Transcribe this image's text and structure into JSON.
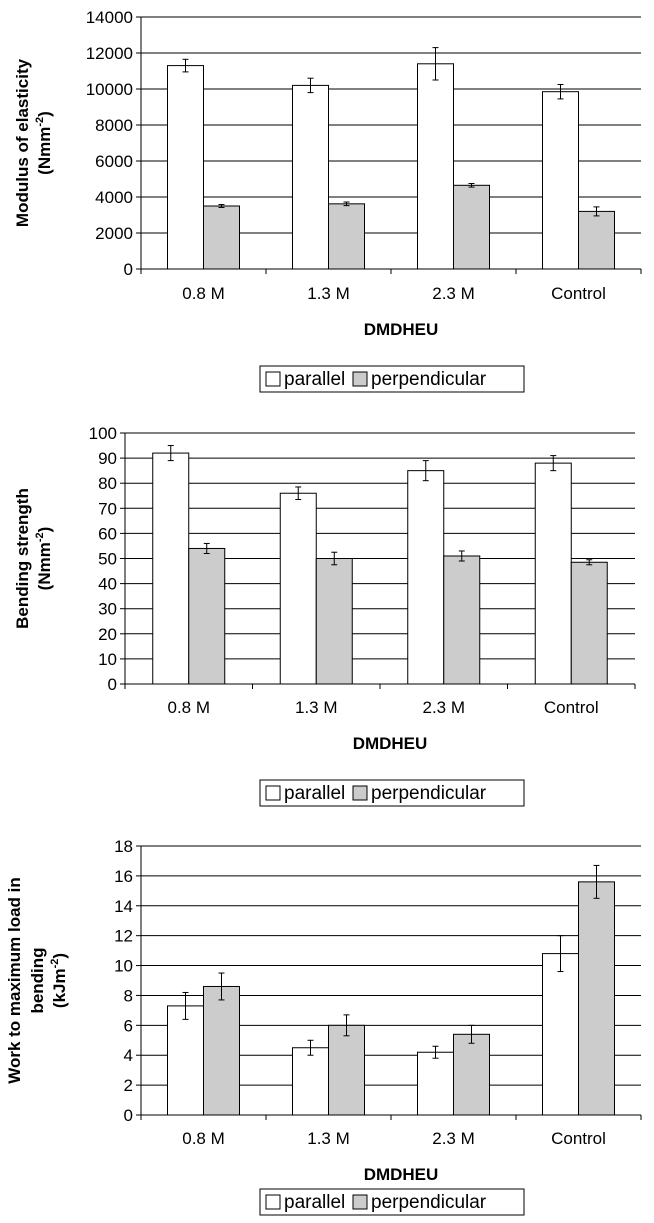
{
  "colors": {
    "parallel": "#ffffff",
    "perpendicular": "#cccccc",
    "axis": "#000000",
    "grid": "#000000"
  },
  "chart_data": [
    {
      "type": "bar",
      "xlabel": "DMDHEU",
      "ylabel_lines": [
        "Modulus of elasticity",
        "(Nmm-2)"
      ],
      "ylabel_unit": {
        "open": "(Nmm",
        "sup": "-2",
        "close": ")"
      },
      "categories": [
        "0.8 M",
        "1.3 M",
        "2.3 M",
        "Control"
      ],
      "ylim": [
        0,
        14000
      ],
      "yticks": [
        0,
        2000,
        4000,
        6000,
        8000,
        10000,
        12000,
        14000
      ],
      "grid": true,
      "legend_position": "bottom",
      "series": [
        {
          "name": "parallel",
          "values": [
            11300,
            10200,
            11400,
            9850
          ],
          "errors": [
            350,
            400,
            900,
            400
          ]
        },
        {
          "name": "perpendicular",
          "values": [
            3500,
            3620,
            4650,
            3200
          ],
          "errors": [
            80,
            100,
            100,
            250
          ]
        }
      ]
    },
    {
      "type": "bar",
      "xlabel": "DMDHEU",
      "ylabel_lines": [
        "Bending strength",
        "(Nmm-2)"
      ],
      "ylabel_unit": {
        "open": "(Nmm",
        "sup": "-2",
        "close": ")"
      },
      "categories": [
        "0.8 M",
        "1.3 M",
        "2.3 M",
        "Control"
      ],
      "ylim": [
        0,
        100
      ],
      "yticks": [
        0,
        10,
        20,
        30,
        40,
        50,
        60,
        70,
        80,
        90,
        100
      ],
      "grid": true,
      "legend_position": "bottom",
      "series": [
        {
          "name": "parallel",
          "values": [
            92,
            76,
            85,
            88
          ],
          "errors": [
            3,
            2.5,
            4,
            3
          ]
        },
        {
          "name": "perpendicular",
          "values": [
            54,
            50,
            51,
            48.5
          ],
          "errors": [
            2,
            2.5,
            2,
            1
          ]
        }
      ]
    },
    {
      "type": "bar",
      "xlabel": "DMDHEU",
      "ylabel_lines": [
        "Work to maximum load in",
        "bending",
        "(kJm-2)"
      ],
      "ylabel_unit": {
        "open": "(kJm",
        "sup": "-2",
        "close": ")"
      },
      "categories": [
        "0.8 M",
        "1.3 M",
        "2.3 M",
        "Control"
      ],
      "ylim": [
        0,
        18
      ],
      "yticks": [
        0,
        2,
        4,
        6,
        8,
        10,
        12,
        14,
        16,
        18
      ],
      "grid": true,
      "legend_position": "bottom",
      "series": [
        {
          "name": "parallel",
          "values": [
            7.3,
            4.5,
            4.2,
            10.8
          ],
          "errors": [
            0.9,
            0.5,
            0.4,
            1.2
          ]
        },
        {
          "name": "perpendicular",
          "values": [
            8.6,
            6.0,
            5.4,
            15.6
          ],
          "errors": [
            0.9,
            0.7,
            0.6,
            1.1
          ]
        }
      ]
    }
  ]
}
